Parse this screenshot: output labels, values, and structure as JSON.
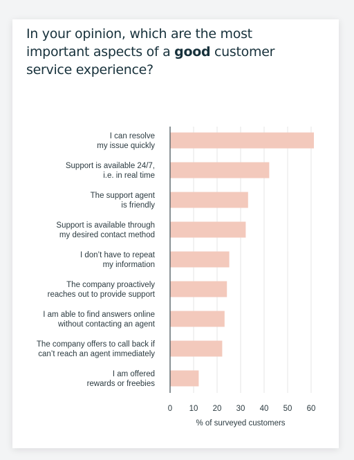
{
  "card": {
    "title_part1": "In your opinion, which are the most important aspects of a ",
    "title_emphasis": "good",
    "title_part2": " customer service experience?"
  },
  "chart_data": {
    "type": "bar",
    "orientation": "horizontal",
    "title": "In your opinion, which are the most important aspects of a good customer service experience?",
    "categories": [
      [
        "I can resolve",
        "my issue quickly"
      ],
      [
        "Support is available 24/7,",
        "i.e. in real time"
      ],
      [
        "The support agent",
        "is friendly"
      ],
      [
        "Support is available through",
        "my desired contact method"
      ],
      [
        "I don’t have to repeat",
        "my information"
      ],
      [
        "The company proactively",
        "reaches out to provide support"
      ],
      [
        "I am able to find answers online",
        "without contacting an agent"
      ],
      [
        "The company offers to call back if",
        "can’t reach an agent immediately"
      ],
      [
        "I am offered",
        "rewards or freebies"
      ]
    ],
    "values": [
      61,
      42,
      33,
      32,
      25,
      24,
      23,
      22,
      12
    ],
    "xlabel": "% of surveyed customers",
    "ylabel": "",
    "xlim": [
      0,
      64
    ],
    "xticks": [
      0,
      10,
      20,
      30,
      40,
      50,
      60
    ],
    "bar_color": "#f3c9bc",
    "grid_color": "#e6e6e6",
    "grid": true,
    "legend": "none"
  }
}
